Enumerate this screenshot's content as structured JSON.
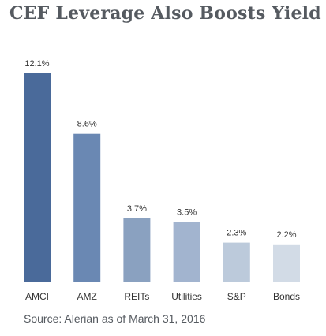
{
  "header": {
    "title": "CEF Leverage Also Boosts Yield"
  },
  "footer": {
    "source": "Source: Alerian as of March 31, 2016"
  },
  "chart_data": {
    "type": "bar",
    "title": "CEF Leverage Also Boosts Yield",
    "xlabel": "",
    "ylabel": "",
    "categories": [
      "AMCI",
      "AMZ",
      "REITs",
      "Utilities",
      "S&P",
      "Bonds"
    ],
    "values": [
      12.1,
      8.6,
      3.7,
      3.5,
      2.3,
      2.2
    ],
    "value_labels": [
      "12.1%",
      "8.6%",
      "3.7%",
      "3.5%",
      "2.3%",
      "2.2%"
    ],
    "unit": "%",
    "ylim": [
      0,
      12.1
    ],
    "grid": false,
    "legend": "none",
    "colors": [
      "#4a6a9a",
      "#6a88b3",
      "#8aa1c0",
      "#a2b4cf",
      "#bccadb",
      "#d2dbe6"
    ]
  }
}
